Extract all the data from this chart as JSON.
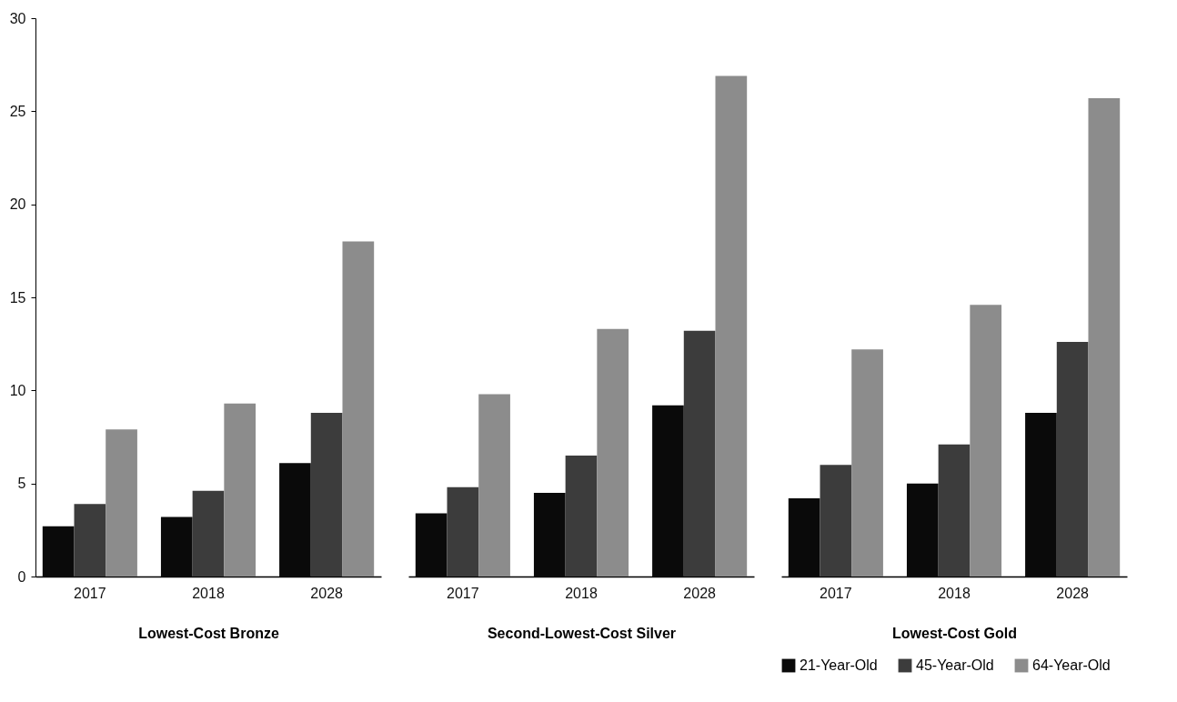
{
  "chart_data": [
    {
      "type": "bar",
      "xlabel": "Lowest-Cost Bronze",
      "categories": [
        "2017",
        "2018",
        "2028"
      ],
      "ylim": [
        0,
        30
      ],
      "yticks": [
        0,
        5,
        10,
        15,
        20,
        25,
        30
      ],
      "grid": false,
      "legend": false,
      "series": [
        {
          "color": "#0a0a0a",
          "values": [
            2.7,
            3.2,
            6.1
          ]
        },
        {
          "color": "#3c3c3c",
          "values": [
            3.9,
            4.6,
            8.8
          ]
        },
        {
          "color": "#8c8c8c",
          "values": [
            7.9,
            9.3,
            18.0
          ]
        }
      ]
    },
    {
      "type": "bar",
      "xlabel": "Second-Lowest-Cost Silver",
      "categories": [
        "2017",
        "2018",
        "2028"
      ],
      "ylim": [
        0,
        30
      ],
      "tick_labels": "x",
      "grid": false,
      "legend": false,
      "series": [
        {
          "color": "#0a0a0a",
          "values": [
            3.4,
            4.5,
            9.2
          ]
        },
        {
          "color": "#3c3c3c",
          "values": [
            4.8,
            6.5,
            13.2
          ]
        },
        {
          "color": "#8c8c8c",
          "values": [
            9.8,
            13.3,
            26.9
          ]
        }
      ]
    },
    {
      "type": "bar",
      "xlabel": "Lowest-Cost Gold",
      "categories": [
        "2017",
        "2018",
        "2028"
      ],
      "ylim": [
        0,
        30
      ],
      "tick_labels": "x",
      "grid": false,
      "legend": "bottom right",
      "series": [
        {
          "name": "21-Year-Old",
          "color": "#0a0a0a",
          "values": [
            4.2,
            5.0,
            8.8
          ]
        },
        {
          "name": "45-Year-Old",
          "color": "#3c3c3c",
          "values": [
            6.0,
            7.1,
            12.6
          ]
        },
        {
          "name": "64-Year-Old",
          "color": "#8c8c8c",
          "values": [
            12.2,
            14.6,
            25.7
          ]
        }
      ]
    }
  ]
}
